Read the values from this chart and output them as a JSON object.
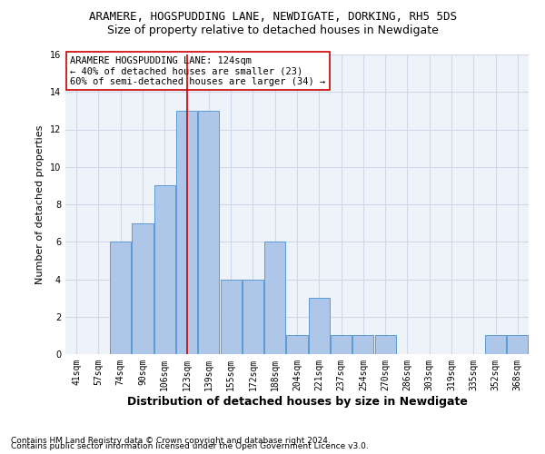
{
  "title1": "ARAMERE, HOGSPUDDING LANE, NEWDIGATE, DORKING, RH5 5DS",
  "title2": "Size of property relative to detached houses in Newdigate",
  "xlabel": "Distribution of detached houses by size in Newdigate",
  "ylabel": "Number of detached properties",
  "categories": [
    "41sqm",
    "57sqm",
    "74sqm",
    "90sqm",
    "106sqm",
    "123sqm",
    "139sqm",
    "155sqm",
    "172sqm",
    "188sqm",
    "204sqm",
    "221sqm",
    "237sqm",
    "254sqm",
    "270sqm",
    "286sqm",
    "303sqm",
    "319sqm",
    "335sqm",
    "352sqm",
    "368sqm"
  ],
  "values": [
    0,
    0,
    6,
    7,
    9,
    13,
    13,
    4,
    4,
    6,
    1,
    3,
    1,
    1,
    1,
    0,
    0,
    0,
    0,
    1,
    1
  ],
  "bar_color": "#aec6e8",
  "bar_edge_color": "#5b9bd5",
  "vline_x": 5.0,
  "vline_color": "#cc0000",
  "annotation_text": "ARAMERE HOGSPUDDING LANE: 124sqm\n← 40% of detached houses are smaller (23)\n60% of semi-detached houses are larger (34) →",
  "annotation_box_color": "white",
  "annotation_box_edge_color": "#cc0000",
  "ylim": [
    0,
    16
  ],
  "yticks": [
    0,
    2,
    4,
    6,
    8,
    10,
    12,
    14,
    16
  ],
  "grid_color": "#d0d8e8",
  "footer1": "Contains HM Land Registry data © Crown copyright and database right 2024.",
  "footer2": "Contains public sector information licensed under the Open Government Licence v3.0.",
  "title1_fontsize": 9,
  "title2_fontsize": 9,
  "xlabel_fontsize": 9,
  "ylabel_fontsize": 8,
  "tick_fontsize": 7,
  "annotation_fontsize": 7.5,
  "footer_fontsize": 6.5
}
